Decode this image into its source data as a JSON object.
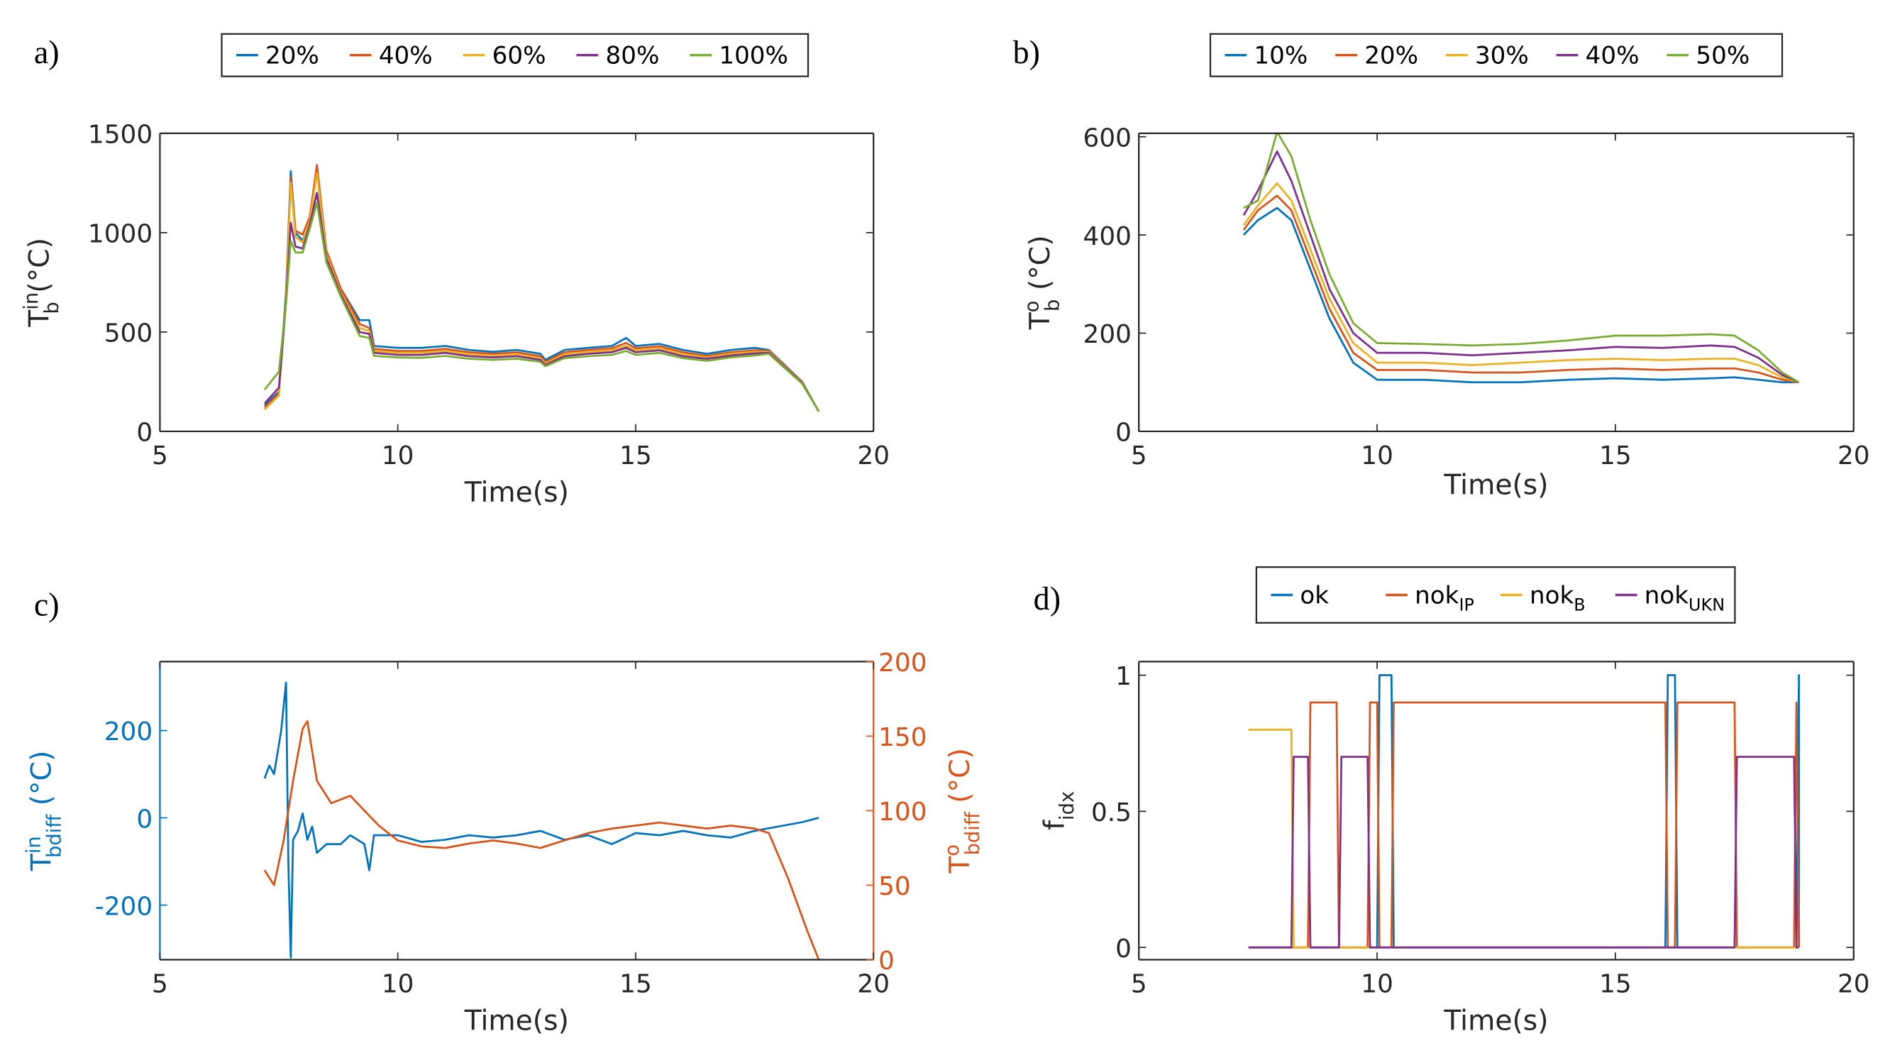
{
  "colors": {
    "blue": "#0072BD",
    "orange": "#D95319",
    "yellow": "#EDB120",
    "purple": "#7E2F8E",
    "green": "#77AC30",
    "axis": "#262626"
  },
  "chart_data": [
    {
      "id": "a",
      "panel_label": "a)",
      "type": "line",
      "xlabel": "Time(s)",
      "xlim": [
        5,
        20
      ],
      "xticks": [
        5,
        10,
        15,
        20
      ],
      "ylabel": {
        "main": "T",
        "sup": "in",
        "sub": "b",
        "unit": " (°C)"
      },
      "ylim": [
        0,
        1500
      ],
      "yticks": [
        0,
        500,
        1000,
        1500
      ],
      "legend": {
        "placement": "top",
        "entries": [
          {
            "text": "20%"
          },
          {
            "text": "40%"
          },
          {
            "text": "60%"
          },
          {
            "text": "80%"
          },
          {
            "text": "100%"
          }
        ]
      },
      "x": [
        7.2,
        7.5,
        7.65,
        7.75,
        7.85,
        8.0,
        8.15,
        8.3,
        8.5,
        8.8,
        9.2,
        9.4,
        9.5,
        10,
        10.5,
        11,
        11.5,
        12,
        12.5,
        13,
        13.1,
        13.5,
        14,
        14.5,
        14.8,
        15,
        15.5,
        16,
        16.5,
        17,
        17.5,
        17.8,
        18.5,
        18.85
      ],
      "series": [
        {
          "name": "20%",
          "color": "blue",
          "values": [
            130,
            200,
            700,
            1310,
            1000,
            960,
            1050,
            1200,
            900,
            720,
            560,
            560,
            430,
            420,
            420,
            430,
            410,
            400,
            410,
            390,
            360,
            410,
            420,
            430,
            470,
            430,
            440,
            410,
            390,
            410,
            420,
            410,
            250,
            100
          ]
        },
        {
          "name": "40%",
          "color": "orange",
          "values": [
            120,
            190,
            680,
            1280,
            1010,
            990,
            1080,
            1340,
            910,
            720,
            540,
            520,
            415,
            405,
            405,
            415,
            398,
            390,
            398,
            378,
            350,
            398,
            410,
            418,
            445,
            418,
            428,
            398,
            380,
            398,
            408,
            405,
            248,
            100
          ]
        },
        {
          "name": "60%",
          "color": "yellow",
          "values": [
            110,
            180,
            660,
            1250,
            980,
            950,
            1060,
            1300,
            890,
            700,
            520,
            505,
            405,
            395,
            395,
            405,
            388,
            380,
            388,
            368,
            342,
            388,
            400,
            408,
            430,
            408,
            418,
            388,
            372,
            390,
            400,
            400,
            245,
            100
          ]
        },
        {
          "name": "80%",
          "color": "purple",
          "values": [
            140,
            220,
            650,
            1050,
            930,
            920,
            1040,
            1200,
            870,
            690,
            500,
            490,
            395,
            385,
            385,
            395,
            378,
            372,
            378,
            360,
            335,
            378,
            390,
            398,
            420,
            398,
            408,
            378,
            365,
            382,
            392,
            395,
            243,
            100
          ]
        },
        {
          "name": "100%",
          "color": "green",
          "values": [
            210,
            300,
            640,
            960,
            900,
            900,
            1020,
            1150,
            850,
            680,
            480,
            470,
            380,
            372,
            370,
            380,
            365,
            360,
            365,
            350,
            328,
            368,
            378,
            385,
            405,
            385,
            395,
            368,
            355,
            372,
            382,
            390,
            240,
            100
          ]
        }
      ]
    },
    {
      "id": "b",
      "panel_label": "b)",
      "type": "line",
      "xlabel": "Time(s)",
      "xlim": [
        5,
        20
      ],
      "xticks": [
        5,
        10,
        15,
        20
      ],
      "ylabel": {
        "main": "T",
        "sup": "o",
        "sub": "b",
        "unit": " (°C)"
      },
      "ylim": [
        0,
        607
      ],
      "yticks": [
        0,
        200,
        400,
        600
      ],
      "legend": {
        "placement": "top",
        "entries": [
          {
            "text": "10%"
          },
          {
            "text": "20%"
          },
          {
            "text": "30%"
          },
          {
            "text": "40%"
          },
          {
            "text": "50%"
          }
        ]
      },
      "x": [
        7.2,
        7.5,
        7.9,
        8.2,
        8.6,
        9.0,
        9.5,
        10,
        11,
        12,
        13,
        14,
        15,
        16,
        17,
        17.5,
        18,
        18.5,
        18.85
      ],
      "series": [
        {
          "name": "10%",
          "color": "blue",
          "values": [
            400,
            430,
            455,
            430,
            330,
            230,
            140,
            105,
            105,
            100,
            100,
            105,
            108,
            105,
            108,
            110,
            105,
            100,
            100
          ]
        },
        {
          "name": "20%",
          "color": "orange",
          "values": [
            410,
            450,
            480,
            450,
            350,
            250,
            160,
            125,
            125,
            120,
            120,
            125,
            128,
            125,
            128,
            128,
            120,
            105,
            100
          ]
        },
        {
          "name": "30%",
          "color": "yellow",
          "values": [
            420,
            460,
            505,
            470,
            370,
            270,
            180,
            140,
            140,
            135,
            140,
            145,
            148,
            145,
            148,
            148,
            135,
            110,
            100
          ]
        },
        {
          "name": "40%",
          "color": "purple",
          "values": [
            440,
            490,
            570,
            510,
            400,
            290,
            200,
            160,
            160,
            155,
            160,
            165,
            172,
            170,
            175,
            172,
            150,
            115,
            100
          ]
        },
        {
          "name": "50%",
          "color": "green",
          "values": [
            455,
            470,
            610,
            560,
            430,
            320,
            220,
            180,
            178,
            175,
            178,
            185,
            195,
            195,
            198,
            195,
            165,
            120,
            100
          ]
        }
      ]
    },
    {
      "id": "c",
      "panel_label": "c)",
      "type": "line",
      "xlabel": "Time(s)",
      "xlim": [
        5,
        20
      ],
      "xticks": [
        5,
        10,
        15,
        20
      ],
      "ylabel": {
        "main": "T",
        "sup": "in",
        "sub": "bdiff",
        "unit": " (°C)"
      },
      "ylim": [
        -325,
        358
      ],
      "yticks": [
        -200,
        0,
        200
      ],
      "ylabel_right": {
        "main": "T",
        "sup": "o",
        "sub": "bdiff",
        "unit": " (°C)"
      },
      "ylim_right": [
        0,
        200
      ],
      "yticks_right": [
        0,
        50,
        100,
        150,
        200
      ],
      "series": [
        {
          "name": "Tin_bdiff",
          "axis": "left",
          "color": "blue",
          "x": [
            7.2,
            7.3,
            7.4,
            7.55,
            7.65,
            7.7,
            7.75,
            7.8,
            7.9,
            8.0,
            8.1,
            8.2,
            8.3,
            8.5,
            8.8,
            9.0,
            9.3,
            9.4,
            9.5,
            10,
            10.5,
            11,
            11.5,
            12,
            12.5,
            13,
            13.5,
            14,
            14.5,
            15,
            15.5,
            16,
            16.5,
            17,
            17.5,
            18,
            18.5,
            18.85
          ],
          "values": [
            90,
            120,
            100,
            200,
            310,
            -100,
            -320,
            -50,
            -30,
            10,
            -50,
            -20,
            -80,
            -60,
            -60,
            -40,
            -60,
            -120,
            -40,
            -40,
            -55,
            -50,
            -40,
            -45,
            -40,
            -30,
            -50,
            -40,
            -60,
            -35,
            -40,
            -30,
            -40,
            -45,
            -30,
            -20,
            -10,
            0
          ]
        },
        {
          "name": "To_bdiff",
          "axis": "right",
          "color": "orange",
          "x": [
            7.2,
            7.4,
            7.6,
            7.8,
            8.0,
            8.1,
            8.3,
            8.6,
            9.0,
            9.3,
            9.6,
            10,
            10.5,
            11,
            11.5,
            12,
            12.5,
            13,
            13.5,
            14,
            14.5,
            15,
            15.5,
            16,
            16.5,
            17,
            17.5,
            17.8,
            18.2,
            18.6,
            18.85
          ],
          "values": [
            60,
            50,
            80,
            120,
            155,
            160,
            120,
            105,
            110,
            100,
            90,
            80,
            76,
            75,
            78,
            80,
            78,
            75,
            80,
            85,
            88,
            90,
            92,
            90,
            88,
            90,
            88,
            85,
            55,
            20,
            0
          ]
        }
      ]
    },
    {
      "id": "d",
      "panel_label": "d)",
      "type": "line",
      "xlabel": "Time(s)",
      "xlim": [
        5,
        20
      ],
      "xticks": [
        5,
        10,
        15,
        20
      ],
      "ylabel": {
        "main": "f",
        "sup": "",
        "sub": "idx",
        "unit": ""
      },
      "ylim": [
        -0.045,
        1.05
      ],
      "yticks": [
        0,
        0.5,
        1
      ],
      "legend": {
        "placement": "top",
        "entries": [
          {
            "text": "ok",
            "sub": ""
          },
          {
            "text": "nok",
            "sub": "IP"
          },
          {
            "text": "nok",
            "sub": "B"
          },
          {
            "text": "nok",
            "sub": "UKN"
          }
        ]
      },
      "series": [
        {
          "name": "ok",
          "color": "blue",
          "x": [
            7.3,
            10.0,
            10.05,
            10.3,
            10.35,
            16.05,
            16.1,
            16.25,
            16.3,
            18.8,
            18.85,
            18.85
          ],
          "values": [
            0,
            0,
            1,
            1,
            0,
            0,
            1,
            1,
            0,
            0,
            1,
            0
          ]
        },
        {
          "name": "nokIP",
          "color": "orange",
          "x": [
            7.3,
            8.55,
            8.6,
            9.15,
            9.2,
            9.8,
            9.85,
            10.0,
            10.05,
            10.3,
            10.35,
            16.05,
            16.1,
            16.25,
            16.3,
            17.5,
            17.55,
            18.75,
            18.8,
            18.85
          ],
          "values": [
            0,
            0,
            0.9,
            0.9,
            0,
            0,
            0.9,
            0.9,
            0,
            0,
            0.9,
            0.9,
            0,
            0,
            0.9,
            0.9,
            0,
            0,
            0.9,
            0
          ]
        },
        {
          "name": "nokB",
          "color": "yellow",
          "x": [
            7.3,
            8.2,
            8.25,
            18.85
          ],
          "values": [
            0.8,
            0.8,
            0,
            0
          ]
        },
        {
          "name": "nokUKN",
          "color": "purple",
          "x": [
            7.3,
            8.2,
            8.25,
            8.55,
            8.6,
            9.2,
            9.25,
            9.8,
            9.85,
            17.5,
            17.55,
            18.75,
            18.8,
            18.85
          ],
          "values": [
            0,
            0,
            0.7,
            0.7,
            0,
            0,
            0.7,
            0.7,
            0,
            0,
            0.7,
            0.7,
            0,
            0
          ]
        }
      ]
    }
  ]
}
